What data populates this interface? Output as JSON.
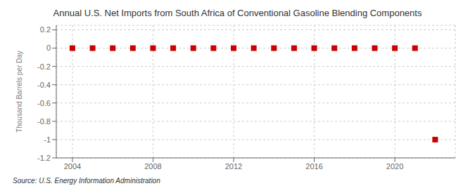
{
  "chart_data": {
    "type": "scatter",
    "title": "Annual U.S. Net Imports from South Africa of Conventional Gasoline Blending Components",
    "ylabel": "Thousand Barrels per Day",
    "annotations": [
      "Source: U.S. Energy Information Administration"
    ],
    "x": [
      2004,
      2005,
      2006,
      2007,
      2008,
      2009,
      2010,
      2011,
      2012,
      2013,
      2014,
      2015,
      2016,
      2017,
      2018,
      2019,
      2020,
      2021,
      2022
    ],
    "values": [
      0,
      0,
      0,
      0,
      0,
      0,
      0,
      0,
      0,
      0,
      0,
      0,
      0,
      0,
      0,
      0,
      0,
      0,
      -1.0
    ],
    "color": "#cc0000",
    "marker": "square",
    "xlim": [
      2003.2,
      2023.0
    ],
    "ylim": [
      -1.2,
      0.25
    ],
    "xticks": [
      2004,
      2008,
      2012,
      2016,
      2020
    ],
    "yticks": [
      0.2,
      0.0,
      -0.2,
      -0.4,
      -0.6,
      -0.8,
      -1.0,
      -1.2
    ],
    "grid": true
  }
}
